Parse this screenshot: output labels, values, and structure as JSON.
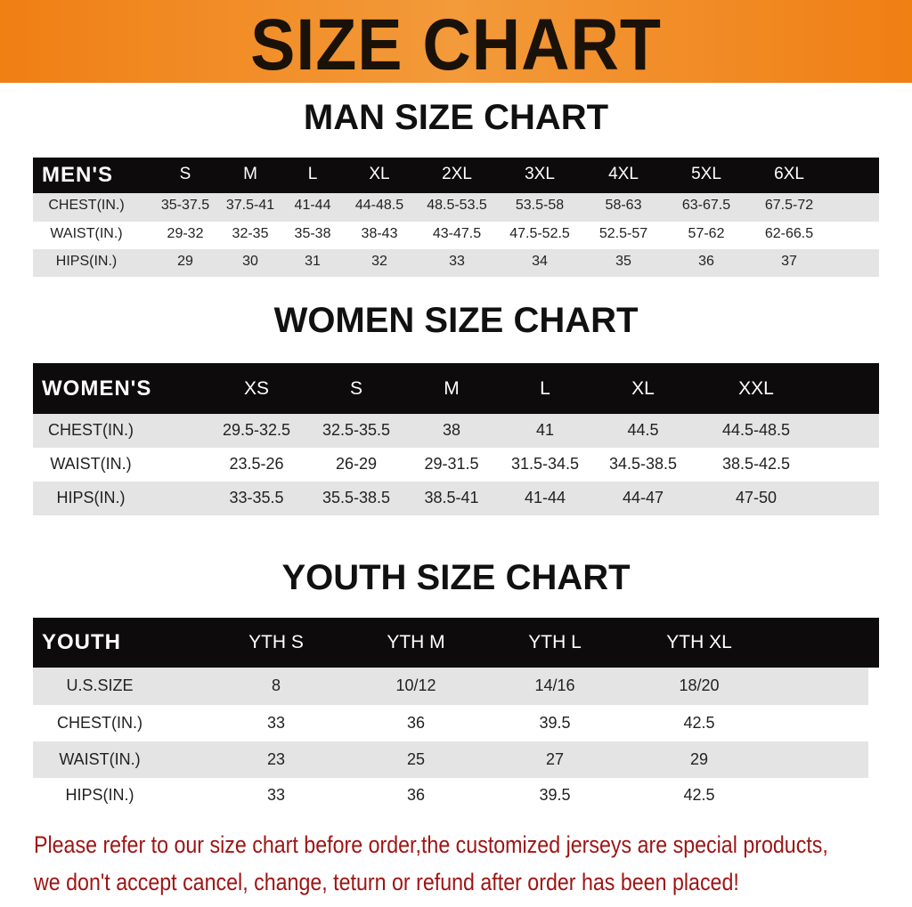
{
  "title": "SIZE CHART",
  "men": {
    "heading": "MAN SIZE CHART",
    "label": "MEN'S",
    "sizes": [
      "S",
      "M",
      "L",
      "XL",
      "2XL",
      "3XL",
      "4XL",
      "5XL",
      "6XL"
    ],
    "rows": [
      {
        "label": "CHEST(IN.)",
        "values": [
          "35-37.5",
          "37.5-41",
          "41-44",
          "44-48.5",
          "48.5-53.5",
          "53.5-58",
          "58-63",
          "63-67.5",
          "67.5-72"
        ]
      },
      {
        "label": "WAIST(IN.)",
        "values": [
          "29-32",
          "32-35",
          "35-38",
          "38-43",
          "43-47.5",
          "47.5-52.5",
          "52.5-57",
          "57-62",
          "62-66.5"
        ]
      },
      {
        "label": "HIPS(IN.)",
        "values": [
          "29",
          "30",
          "31",
          "32",
          "33",
          "34",
          "35",
          "36",
          "37"
        ]
      }
    ]
  },
  "women": {
    "heading": "WOMEN SIZE CHART",
    "label": "WOMEN'S",
    "sizes": [
      "XS",
      "S",
      "M",
      "L",
      "XL",
      "XXL"
    ],
    "rows": [
      {
        "label": "CHEST(IN.)",
        "values": [
          "29.5-32.5",
          "32.5-35.5",
          "38",
          "41",
          "44.5",
          "44.5-48.5"
        ]
      },
      {
        "label": "WAIST(IN.)",
        "values": [
          "23.5-26",
          "26-29",
          "29-31.5",
          "31.5-34.5",
          "34.5-38.5",
          "38.5-42.5"
        ]
      },
      {
        "label": "HIPS(IN.)",
        "values": [
          "33-35.5",
          "35.5-38.5",
          "38.5-41",
          "41-44",
          "44-47",
          "47-50"
        ]
      }
    ]
  },
  "youth": {
    "heading": "YOUTH SIZE CHART",
    "label": "YOUTH",
    "sizes": [
      "YTH S",
      "YTH M",
      "YTH L",
      "YTH XL"
    ],
    "rows": [
      {
        "label": "U.S.SIZE",
        "values": [
          "8",
          "10/12",
          "14/16",
          "18/20"
        ]
      },
      {
        "label": "CHEST(IN.)",
        "values": [
          "33",
          "36",
          "39.5",
          "42.5"
        ]
      },
      {
        "label": "WAIST(IN.)",
        "values": [
          "23",
          "25",
          "27",
          "29"
        ]
      },
      {
        "label": "HIPS(IN.)",
        "values": [
          "33",
          "36",
          "39.5",
          "42.5"
        ]
      }
    ]
  },
  "notice": {
    "line1": "Please refer to our size chart before order,the customized jerseys are special products,",
    "line2": "we don't accept cancel, change, teturn or refund after order has been placed!"
  },
  "colors": {
    "banner": "#f08a1e",
    "header_row": "#0d0b0b",
    "stripe": "#e4e4e4",
    "notice": "#9e1414"
  }
}
